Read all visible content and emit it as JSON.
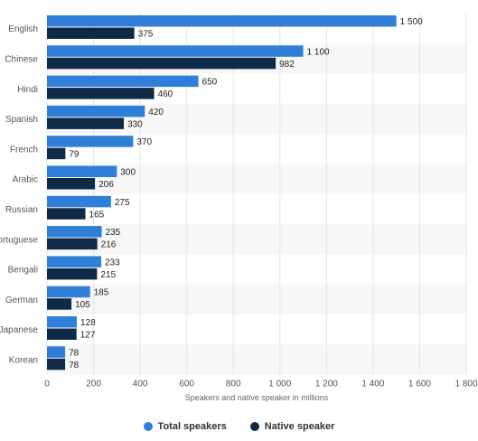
{
  "chart_data": {
    "type": "bar",
    "orientation": "horizontal",
    "categories": [
      "English",
      "Chinese",
      "Hindi",
      "Spanish",
      "French",
      "Arabic",
      "Russian",
      "Portuguese",
      "Bengali",
      "German",
      "Japanese",
      "Korean"
    ],
    "series": [
      {
        "name": "Total speakers",
        "color": "#2f7ed8",
        "values": [
          1500,
          1100,
          650,
          420,
          370,
          300,
          275,
          235,
          233,
          185,
          128,
          78
        ],
        "labels": [
          "1 500",
          "1 100",
          "650",
          "420",
          "370",
          "300",
          "275",
          "235",
          "233",
          "185",
          "128",
          "78"
        ]
      },
      {
        "name": "Native speaker",
        "color": "#0f2a47",
        "values": [
          375,
          982,
          460,
          330,
          79,
          206,
          165,
          216,
          215,
          105,
          127,
          78
        ],
        "labels": [
          "375",
          "982",
          "460",
          "330",
          "79",
          "206",
          "165",
          "216",
          "215",
          "105",
          "127",
          "78"
        ]
      }
    ],
    "xlabel": "Speakers and native speaker in millions",
    "xlim": [
      0,
      1800
    ],
    "xticks": [
      0,
      200,
      400,
      600,
      800,
      1000,
      1200,
      1400,
      1600,
      1800
    ],
    "xtick_labels": [
      "0",
      "200",
      "400",
      "600",
      "800",
      "1 000",
      "1 200",
      "1 400",
      "1 600",
      "1 800"
    ],
    "grid": true,
    "legend_position": "bottom-center",
    "row_stripe_color": "#f7f7f7"
  }
}
